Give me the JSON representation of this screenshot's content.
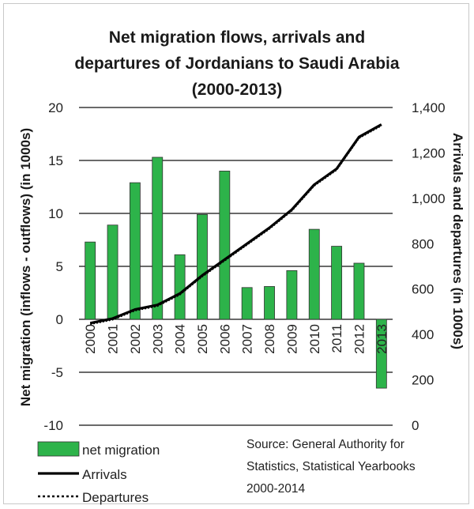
{
  "chart_data": {
    "type": "bar",
    "title_lines": [
      "Net migration flows, arrivals and",
      "departures of Jordanians to Saudi Arabia",
      "(2000-2013)"
    ],
    "categories": [
      "2000",
      "2001",
      "2002",
      "2003",
      "2004",
      "2005",
      "2006",
      "2007",
      "2008",
      "2009",
      "2010",
      "2011",
      "2012",
      "2013"
    ],
    "ylabel": "Net migration (inflows - outflows) (in 1000s)",
    "y2label": "Arrivals and departures (in 1000s)",
    "ylim": [
      -10,
      20
    ],
    "y_ticks": [
      "-10",
      "-5",
      "0",
      "5",
      "10",
      "15",
      "20"
    ],
    "y2lim": [
      0,
      1400
    ],
    "y2_ticks": [
      "0",
      "200",
      "400",
      "600",
      "800",
      "1,000",
      "1,200",
      "1,400"
    ],
    "grid": true,
    "bar_color": "#2db34a",
    "series": [
      {
        "name": "net migration",
        "axis": "left",
        "kind": "bar",
        "values": [
          7.3,
          8.9,
          12.9,
          15.3,
          6.1,
          9.9,
          14.0,
          3.0,
          3.1,
          4.6,
          8.5,
          6.9,
          5.3,
          -6.5
        ]
      },
      {
        "name": "Arrivals",
        "axis": "right",
        "kind": "line",
        "style": "solid",
        "values": [
          450,
          470,
          510,
          530,
          580,
          660,
          730,
          800,
          870,
          950,
          1060,
          1130,
          1270,
          1325
        ]
      },
      {
        "name": "Departures",
        "axis": "right",
        "kind": "line",
        "style": "dotted",
        "values": [
          445,
          465,
          505,
          525,
          575,
          655,
          725,
          795,
          865,
          945,
          1055,
          1125,
          1265,
          1320
        ]
      }
    ],
    "legend_position": "bottom-left",
    "source_lines": [
      "Source: General Authority for",
      "Statistics, Statistical Yearbooks",
      "2000-2014"
    ]
  }
}
